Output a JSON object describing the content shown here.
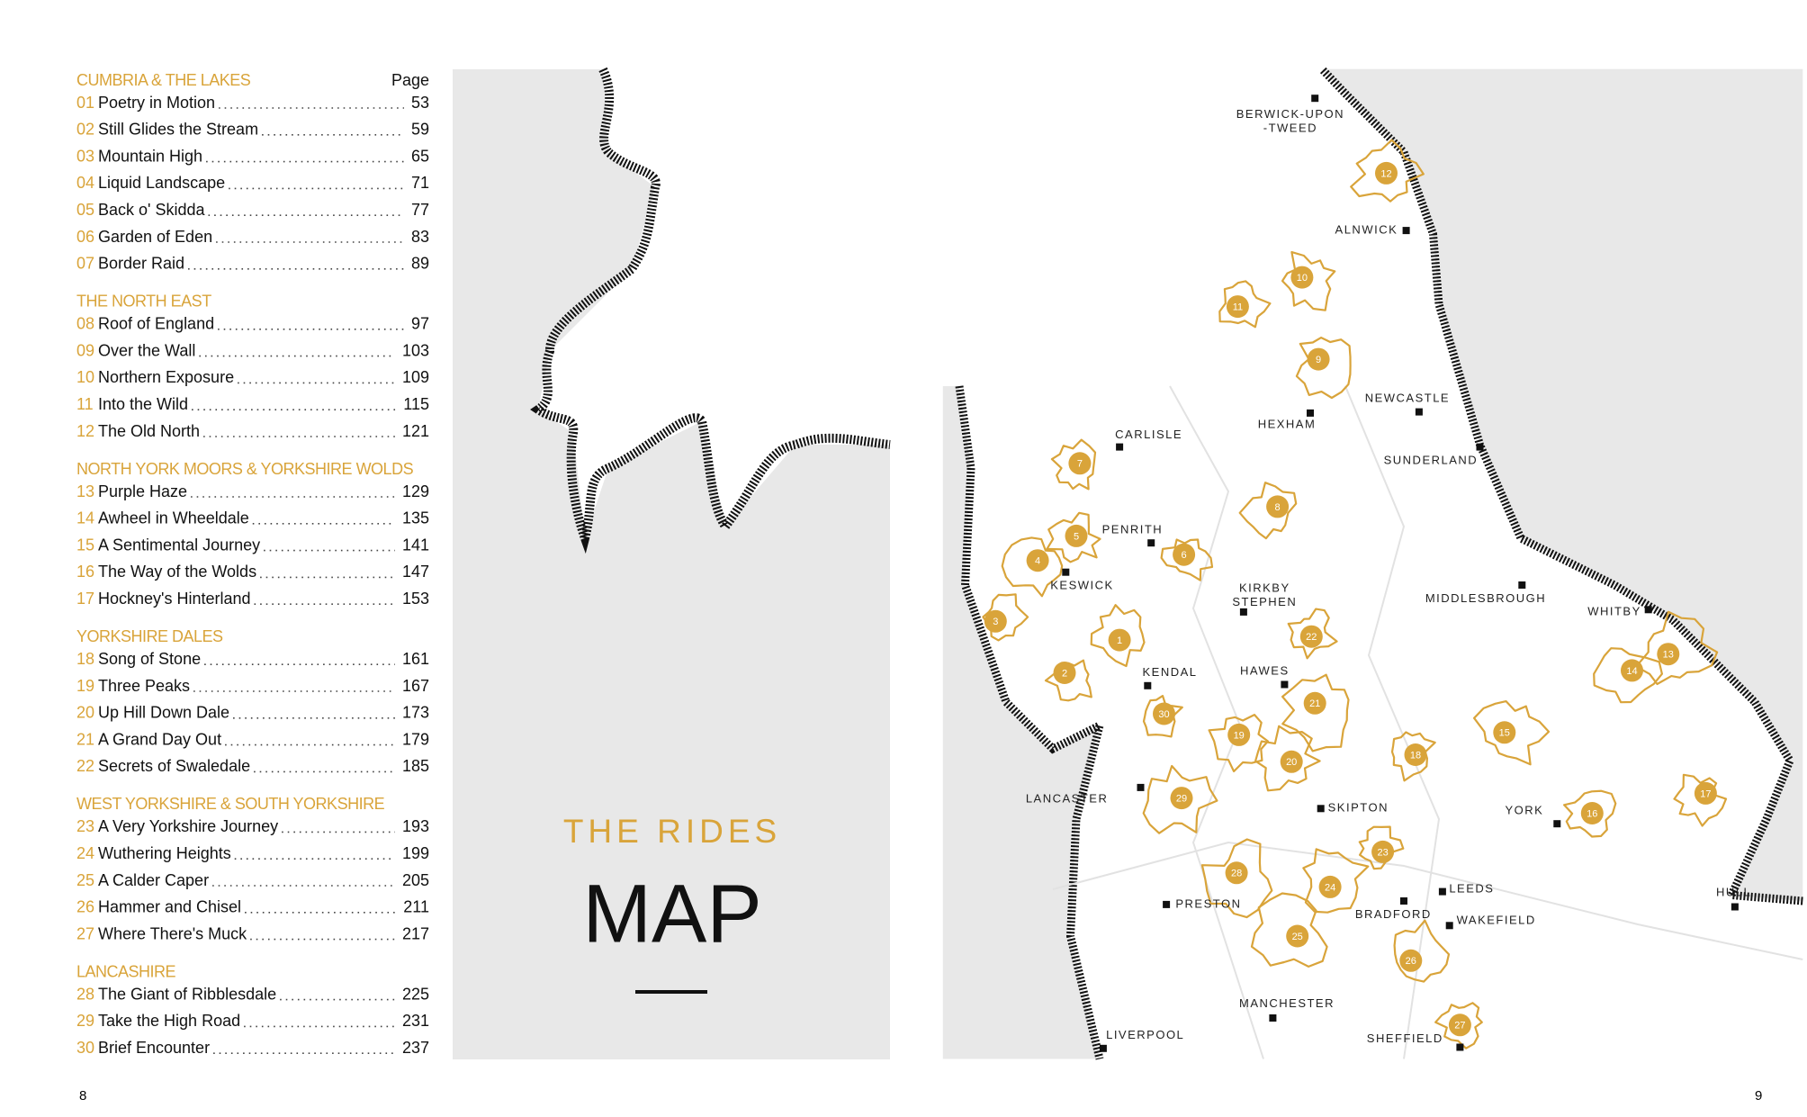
{
  "contents": {
    "page_heading": "Page",
    "sections": [
      {
        "title": "CUMBRIA & THE LAKES",
        "entries": [
          {
            "number": "01",
            "title": "Poetry in Motion",
            "page": 53
          },
          {
            "number": "02",
            "title": "Still Glides the Stream",
            "page": 59
          },
          {
            "number": "03",
            "title": "Mountain High",
            "page": 65
          },
          {
            "number": "04",
            "title": "Liquid Landscape",
            "page": 71
          },
          {
            "number": "05",
            "title": "Back o' Skidda",
            "page": 77
          },
          {
            "number": "06",
            "title": "Garden of Eden",
            "page": 83
          },
          {
            "number": "07",
            "title": "Border Raid",
            "page": 89
          }
        ]
      },
      {
        "title": "THE NORTH EAST",
        "entries": [
          {
            "number": "08",
            "title": "Roof of England",
            "page": 97
          },
          {
            "number": "09",
            "title": "Over the Wall",
            "page": 103
          },
          {
            "number": "10",
            "title": "Northern Exposure",
            "page": 109
          },
          {
            "number": "11",
            "title": "Into the Wild",
            "page": 115
          },
          {
            "number": "12",
            "title": "The Old North",
            "page": 121
          }
        ]
      },
      {
        "title": "NORTH YORK MOORS & YORKSHIRE WOLDS",
        "entries": [
          {
            "number": "13",
            "title": "Purple Haze",
            "page": 129
          },
          {
            "number": "14",
            "title": "Awheel in Wheeldale",
            "page": 135
          },
          {
            "number": "15",
            "title": "A Sentimental Journey",
            "page": 141
          },
          {
            "number": "16",
            "title": "The Way of the Wolds",
            "page": 147
          },
          {
            "number": "17",
            "title": "Hockney's Hinterland",
            "page": 153
          }
        ]
      },
      {
        "title": "YORKSHIRE DALES",
        "entries": [
          {
            "number": "18",
            "title": "Song of Stone",
            "page": 161
          },
          {
            "number": "19",
            "title": "Three Peaks",
            "page": 167
          },
          {
            "number": "20",
            "title": "Up Hill Down Dale",
            "page": 173
          },
          {
            "number": "21",
            "title": "A Grand Day Out",
            "page": 179
          },
          {
            "number": "22",
            "title": "Secrets of Swaledale",
            "page": 185
          }
        ]
      },
      {
        "title": "WEST YORKSHIRE & SOUTH YORKSHIRE",
        "entries": [
          {
            "number": "23",
            "title": "A Very Yorkshire Journey",
            "page": 193
          },
          {
            "number": "24",
            "title": "Wuthering Heights",
            "page": 199
          },
          {
            "number": "25",
            "title": "A Calder Caper",
            "page": 205
          },
          {
            "number": "26",
            "title": "Hammer and Chisel",
            "page": 211
          },
          {
            "number": "27",
            "title": "Where There's Muck",
            "page": 217
          }
        ]
      },
      {
        "title": "LANCASHIRE",
        "entries": [
          {
            "number": "28",
            "title": "The Giant of Ribblesdale",
            "page": 225
          },
          {
            "number": "29",
            "title": "Take the High Road",
            "page": 231
          },
          {
            "number": "30",
            "title": "Brief Encounter",
            "page": 237
          }
        ]
      }
    ]
  },
  "center": {
    "kicker": "THE RIDES",
    "title": "MAP"
  },
  "map": {
    "towns": [
      {
        "lines": [
          "BERWICK-UPON",
          "-TWEED"
        ]
      },
      {
        "lines": [
          "ALNWICK"
        ]
      },
      {
        "lines": [
          "NEWCASTLE"
        ]
      },
      {
        "lines": [
          "HEXHAM"
        ]
      },
      {
        "lines": [
          "SUNDERLAND"
        ]
      },
      {
        "lines": [
          "CARLISLE"
        ]
      },
      {
        "lines": [
          "PENRITH"
        ]
      },
      {
        "lines": [
          "KESWICK"
        ]
      },
      {
        "lines": [
          "KIRKBY",
          "STEPHEN"
        ]
      },
      {
        "lines": [
          "MIDDLESBROUGH"
        ]
      },
      {
        "lines": [
          "WHITBY"
        ]
      },
      {
        "lines": [
          "KENDAL"
        ]
      },
      {
        "lines": [
          "HAWES"
        ]
      },
      {
        "lines": [
          "LANCASTER"
        ]
      },
      {
        "lines": [
          "SKIPTON"
        ]
      },
      {
        "lines": [
          "YORK"
        ]
      },
      {
        "lines": [
          "LEEDS"
        ]
      },
      {
        "lines": [
          "PRESTON"
        ]
      },
      {
        "lines": [
          "BRADFORD"
        ]
      },
      {
        "lines": [
          "WAKEFIELD"
        ]
      },
      {
        "lines": [
          "HULL"
        ]
      },
      {
        "lines": [
          "MANCHESTER"
        ]
      },
      {
        "lines": [
          "LIVERPOOL"
        ]
      },
      {
        "lines": [
          "SHEFFIELD"
        ]
      }
    ],
    "routes": [
      1,
      2,
      3,
      4,
      5,
      6,
      7,
      8,
      9,
      10,
      11,
      12,
      13,
      14,
      15,
      16,
      17,
      18,
      19,
      20,
      21,
      22,
      23,
      24,
      25,
      26,
      27,
      28,
      29,
      30
    ]
  },
  "page_numbers": [
    8,
    9
  ]
}
